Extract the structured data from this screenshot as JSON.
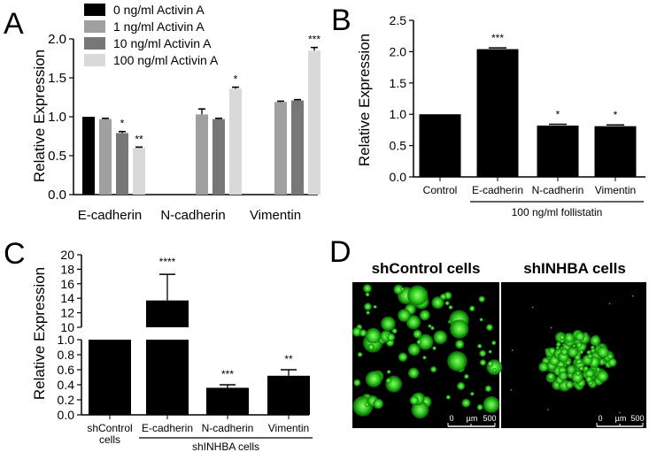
{
  "panels": {
    "a": "A",
    "b": "B",
    "c": "C",
    "d": "D"
  },
  "chart_data": [
    {
      "panel": "A",
      "type": "bar",
      "ylabel": "Relative Expression",
      "ylim": [
        0,
        2.0
      ],
      "yticks": [
        "0.0",
        "0.5",
        "1.0",
        "1.5",
        "2.0"
      ],
      "categories": [
        "E-cadherin",
        "N-cadherin",
        "Vimentin"
      ],
      "legend_position": "top-left",
      "series": [
        {
          "name": "0 ng/ml Activin A",
          "color": "#000000",
          "values": [
            1.0,
            null,
            null
          ],
          "errors": [
            0,
            0,
            0
          ],
          "stars": [
            "",
            "",
            ""
          ]
        },
        {
          "name": "1 ng/ml Activin A",
          "color": "#a0a0a0",
          "values": [
            0.97,
            1.03,
            1.19
          ],
          "errors": [
            0.01,
            0.07,
            0.01
          ],
          "stars": [
            "",
            "",
            ""
          ]
        },
        {
          "name": "10 ng/ml Activin A",
          "color": "#777777",
          "values": [
            0.79,
            0.97,
            1.21
          ],
          "errors": [
            0.02,
            0.01,
            0.01
          ],
          "stars": [
            "*",
            "",
            ""
          ]
        },
        {
          "name": "100 ng/ml Activin A",
          "color": "#d9d9d9",
          "values": [
            0.6,
            1.36,
            1.85
          ],
          "errors": [
            0.01,
            0.02,
            0.04
          ],
          "stars": [
            "**",
            "*",
            "***"
          ]
        }
      ]
    },
    {
      "panel": "B",
      "type": "bar",
      "ylabel": "Relative Expression",
      "ylim": [
        0,
        2.5
      ],
      "yticks": [
        "0.0",
        "0.5",
        "1.0",
        "1.5",
        "2.0",
        "2.5"
      ],
      "categories": [
        "Control",
        "E-cadherin",
        "N-cadherin",
        "Vimentin"
      ],
      "values": [
        1.0,
        2.04,
        0.82,
        0.81
      ],
      "errors": [
        0,
        0.02,
        0.02,
        0.02
      ],
      "stars": [
        "",
        "***",
        "*",
        "*"
      ],
      "group_label": "100 ng/ml follistatin"
    },
    {
      "panel": "C",
      "type": "bar",
      "ylabel": "Relative Expression",
      "ylim_lower": [
        0,
        1.0
      ],
      "ylim_upper": [
        10,
        20
      ],
      "yticks_lower": [
        "0.0",
        "0.2",
        "0.4",
        "0.6",
        "0.8",
        "1.0"
      ],
      "yticks_upper": [
        "10",
        "12",
        "14",
        "16",
        "18",
        "20"
      ],
      "categories": [
        "shControl cells",
        "E-cadherin",
        "N-cadherin",
        "Vimentin"
      ],
      "category_lines": [
        [
          "shControl",
          "cells"
        ],
        [
          "E-cadherin"
        ],
        [
          "N-cadherin"
        ],
        [
          "Vimentin"
        ]
      ],
      "values": [
        1.0,
        13.7,
        0.36,
        0.52
      ],
      "errors": [
        0,
        3.6,
        0.04,
        0.08
      ],
      "stars": [
        "",
        "****",
        "***",
        "**"
      ],
      "group_label": "shINHBA cells"
    }
  ],
  "microscopy": {
    "left": {
      "title": "shControl cells",
      "scale_labels": [
        "0",
        "µm",
        "500"
      ]
    },
    "right": {
      "title": "shINHBA cells",
      "scale_labels": [
        "0",
        "µm",
        "500"
      ]
    }
  }
}
